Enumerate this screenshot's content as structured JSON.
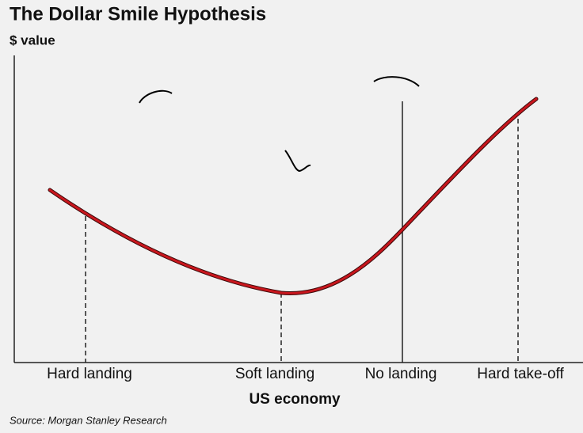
{
  "title": "The Dollar Smile Hypothesis",
  "y_label": "$ value",
  "categories": [
    "Hard landing",
    "Soft landing",
    "No landing",
    "Hard take-off"
  ],
  "x_label": "US economy",
  "source": "Source: Morgan Stanley Research"
}
